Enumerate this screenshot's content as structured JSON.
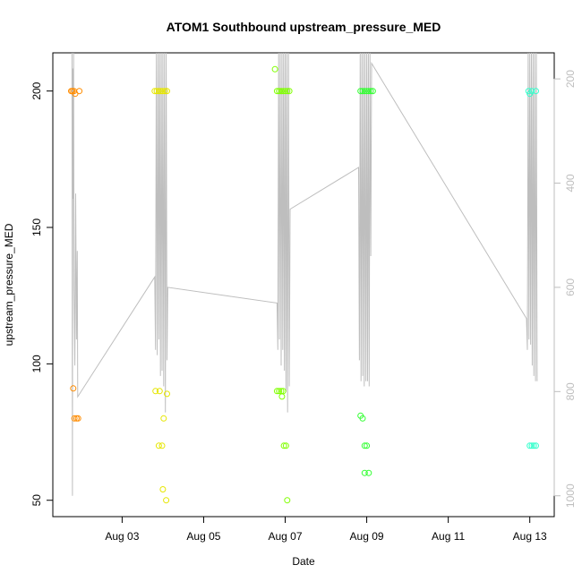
{
  "chart_data": {
    "type": "scatter",
    "title": "ATOM1 Southbound upstream_pressure_MED",
    "xlabel": "Date",
    "ylabel": "upstream_pressure_MED",
    "xlim": [
      1.3,
      13.6
    ],
    "ylim": [
      44,
      214
    ],
    "y_ticks": [
      50,
      100,
      150,
      200
    ],
    "x_ticks": [
      {
        "value": 3,
        "label": "Aug 03"
      },
      {
        "value": 5,
        "label": "Aug 05"
      },
      {
        "value": 7,
        "label": "Aug 07"
      },
      {
        "value": 9,
        "label": "Aug 09"
      },
      {
        "value": 11,
        "label": "Aug 11"
      },
      {
        "value": 13,
        "label": "Aug 13"
      }
    ],
    "y2lim": [
      1040,
      150
    ],
    "y2_ticks": [
      200,
      400,
      600,
      800,
      1000
    ],
    "y2_color": "#bebebe",
    "grid": false,
    "series": [
      {
        "color": "#ff8c00",
        "points": [
          [
            1.75,
            200
          ],
          [
            1.78,
            200
          ],
          [
            1.82,
            200
          ],
          [
            1.85,
            199
          ],
          [
            1.95,
            200
          ],
          [
            1.8,
            91
          ],
          [
            1.83,
            80
          ],
          [
            1.88,
            80
          ],
          [
            1.92,
            80
          ]
        ]
      },
      {
        "color": "#e6e600",
        "points": [
          [
            3.8,
            200
          ],
          [
            3.85,
            200
          ],
          [
            3.9,
            200
          ],
          [
            3.95,
            200
          ],
          [
            4.0,
            200
          ],
          [
            4.05,
            200
          ],
          [
            4.1,
            200
          ],
          [
            3.82,
            90
          ],
          [
            3.92,
            90
          ],
          [
            4.1,
            89
          ],
          [
            3.9,
            70
          ],
          [
            3.98,
            70
          ],
          [
            4.02,
            80
          ],
          [
            4.0,
            54
          ],
          [
            4.08,
            50
          ]
        ]
      },
      {
        "color": "#80ff00",
        "points": [
          [
            6.75,
            208
          ],
          [
            6.8,
            200
          ],
          [
            6.85,
            200
          ],
          [
            6.9,
            200
          ],
          [
            6.95,
            200
          ],
          [
            7.0,
            200
          ],
          [
            7.05,
            200
          ],
          [
            7.1,
            200
          ],
          [
            6.8,
            90
          ],
          [
            6.85,
            90
          ],
          [
            6.9,
            90
          ],
          [
            6.95,
            90
          ],
          [
            6.92,
            88
          ],
          [
            6.97,
            70
          ],
          [
            7.02,
            70
          ],
          [
            7.05,
            50
          ]
        ]
      },
      {
        "color": "#33ff33",
        "points": [
          [
            8.85,
            200
          ],
          [
            8.9,
            200
          ],
          [
            8.95,
            200
          ],
          [
            9.0,
            200
          ],
          [
            9.05,
            200
          ],
          [
            9.1,
            200
          ],
          [
            9.15,
            200
          ],
          [
            8.85,
            81
          ],
          [
            8.9,
            80
          ],
          [
            8.95,
            70
          ],
          [
            9.0,
            70
          ],
          [
            8.95,
            60
          ],
          [
            9.05,
            60
          ]
        ]
      },
      {
        "color": "#33ffcc",
        "points": [
          [
            12.97,
            200
          ],
          [
            13.0,
            199
          ],
          [
            13.05,
            200
          ],
          [
            13.15,
            200
          ],
          [
            13.0,
            70
          ],
          [
            13.05,
            70
          ],
          [
            13.1,
            70
          ],
          [
            13.15,
            70
          ]
        ]
      }
    ],
    "line_series": {
      "color": "#bebebe",
      "axis": "right",
      "points": [
        [
          1.77,
          150
        ],
        [
          1.78,
          1000
        ],
        [
          1.79,
          180
        ],
        [
          1.8,
          430
        ],
        [
          1.81,
          150
        ],
        [
          1.82,
          600
        ],
        [
          1.84,
          750
        ],
        [
          1.86,
          420
        ],
        [
          1.88,
          700
        ],
        [
          1.9,
          530
        ],
        [
          1.91,
          810
        ],
        [
          3.8,
          580
        ],
        [
          3.82,
          720
        ],
        [
          3.84,
          150
        ],
        [
          3.86,
          730
        ],
        [
          3.88,
          150
        ],
        [
          3.9,
          700
        ],
        [
          3.92,
          150
        ],
        [
          3.94,
          770
        ],
        [
          3.96,
          150
        ],
        [
          3.98,
          760
        ],
        [
          4.0,
          150
        ],
        [
          4.02,
          790
        ],
        [
          4.04,
          150
        ],
        [
          4.06,
          840
        ],
        [
          4.08,
          150
        ],
        [
          4.1,
          740
        ],
        [
          4.12,
          600
        ],
        [
          6.8,
          630
        ],
        [
          6.82,
          720
        ],
        [
          6.84,
          150
        ],
        [
          6.86,
          700
        ],
        [
          6.88,
          150
        ],
        [
          6.9,
          750
        ],
        [
          6.92,
          150
        ],
        [
          6.94,
          720
        ],
        [
          6.96,
          150
        ],
        [
          6.98,
          760
        ],
        [
          7.0,
          150
        ],
        [
          7.02,
          800
        ],
        [
          7.04,
          150
        ],
        [
          7.06,
          840
        ],
        [
          7.08,
          150
        ],
        [
          7.1,
          790
        ],
        [
          7.12,
          450
        ],
        [
          8.8,
          370
        ],
        [
          8.82,
          740
        ],
        [
          8.84,
          150
        ],
        [
          8.86,
          780
        ],
        [
          8.88,
          150
        ],
        [
          8.9,
          770
        ],
        [
          8.92,
          150
        ],
        [
          8.94,
          790
        ],
        [
          8.96,
          150
        ],
        [
          8.98,
          780
        ],
        [
          9.0,
          150
        ],
        [
          9.02,
          780
        ],
        [
          9.04,
          150
        ],
        [
          9.06,
          790
        ],
        [
          9.08,
          150
        ],
        [
          9.1,
          540
        ],
        [
          9.12,
          170
        ],
        [
          12.92,
          660
        ],
        [
          12.94,
          720
        ],
        [
          12.96,
          150
        ],
        [
          12.98,
          700
        ],
        [
          13.0,
          150
        ],
        [
          13.02,
          710
        ],
        [
          13.04,
          150
        ],
        [
          13.06,
          750
        ],
        [
          13.08,
          150
        ],
        [
          13.1,
          770
        ],
        [
          13.12,
          150
        ],
        [
          13.14,
          780
        ],
        [
          13.16,
          150
        ],
        [
          13.18,
          780
        ]
      ]
    }
  }
}
